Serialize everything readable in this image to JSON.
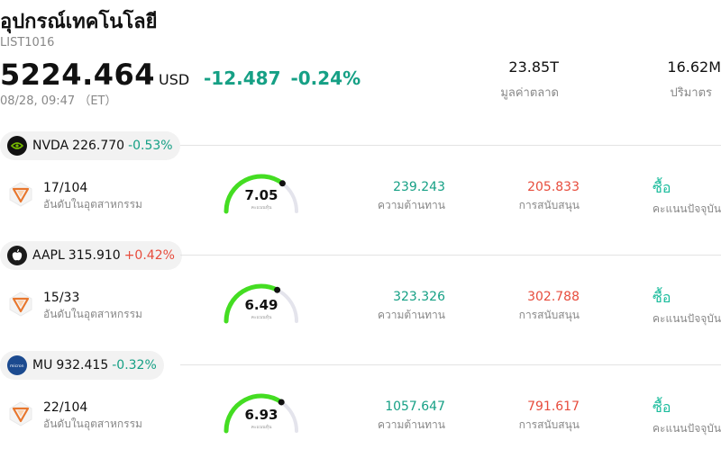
{
  "header": {
    "title": "อุปกรณ์เทคโนโลยี",
    "code": "LIST1016",
    "price": "5224.464",
    "currency": "USD",
    "change": "-12.487",
    "change_pct": "-0.24%",
    "time": "08/28, 09:47 （ET）",
    "market_cap_value": "23.85T",
    "market_cap_label": "มูลค่าตลาด",
    "volume_value": "16.62M",
    "volume_label": "ปริมาตร"
  },
  "colors": {
    "up": "#e74c3c",
    "down": "#16a085",
    "gauge": "#44dd22",
    "accent": "#1abc9c"
  },
  "stocks": [
    {
      "ticker": "NVDA",
      "price": "226.770",
      "pct": "-0.53%",
      "direction": "down",
      "logo_icon": "nvidia-logo",
      "rank": "17/104",
      "rank_label": "อันดับในอุตสาหกรรม",
      "score": "7.05",
      "score_label": "คะแนนหุ้น",
      "score_fraction": 0.705,
      "resistance": "239.243",
      "resistance_label": "ความต้านทาน",
      "support": "205.833",
      "support_label": "การสนับสนุน",
      "action": "ซื้อ",
      "action_label": "คะแนนปัจจุบัน"
    },
    {
      "ticker": "AAPL",
      "price": "315.910",
      "pct": "+0.42%",
      "direction": "up",
      "logo_icon": "apple-logo",
      "rank": "15/33",
      "rank_label": "อันดับในอุตสาหกรรม",
      "score": "6.49",
      "score_label": "คะแนนหุ้น",
      "score_fraction": 0.649,
      "resistance": "323.326",
      "resistance_label": "ความต้านทาน",
      "support": "302.788",
      "support_label": "การสนับสนุน",
      "action": "ซื้อ",
      "action_label": "คะแนนปัจจุบัน"
    },
    {
      "ticker": "MU",
      "price": "932.415",
      "pct": "-0.32%",
      "direction": "down",
      "logo_icon": "micron-logo",
      "rank": "22/104",
      "rank_label": "อันดับในอุตสาหกรรม",
      "score": "6.93",
      "score_label": "คะแนนหุ้น",
      "score_fraction": 0.693,
      "resistance": "1057.647",
      "resistance_label": "ความต้านทาน",
      "support": "791.617",
      "support_label": "การสนับสนุน",
      "action": "ซื้อ",
      "action_label": "คะแนนปัจจุบัน"
    }
  ]
}
